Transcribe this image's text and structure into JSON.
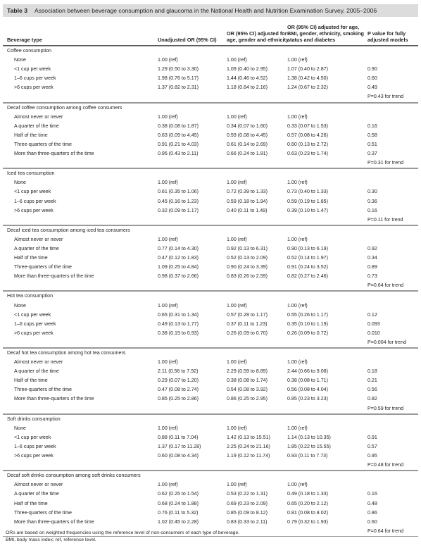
{
  "header": {
    "label": "Table 3",
    "title": "Association between beverage consumption and glaucoma in the National Health and Nutrition Examination Survey, 2005–2006"
  },
  "table": {
    "columns": [
      "Beverage type",
      "Unadjusted OR (95% CI)",
      "OR (95% CI) adjusted for age, gender and ethnicity",
      "OR (95% CI) adjusted for age, BMI, gender, ethnicity, smoking status and diabetes",
      "P value for fully adjusted models"
    ],
    "sections": [
      {
        "title": "Coffee consumption",
        "rows": [
          [
            "None",
            "1.00 (ref)",
            "1.00 (ref)",
            "1.00 (ref)"
          ],
          [
            "<1 cup per week",
            "1.29 (0.50 to 3.30)",
            "1.09 (0.40 to 2.95)",
            "1.07 (0.40 to 2.87)",
            "0.90"
          ],
          [
            "1–6 cups per week",
            "1.98 (0.76 to 5.17)",
            "1.44 (0.46 to 4.52)",
            "1.38 (0.42 to 4.50)",
            "0.60"
          ],
          [
            ">6 cups per week",
            "1.37 (0.82 to 2.31)",
            "1.18 (0.64 to 2.16)",
            "1.24 (0.67 to 2.32)",
            "0.49"
          ]
        ],
        "trend": "P=0.43 for trend"
      },
      {
        "title": "Decaf coffee consumption among coffee consumers",
        "rows": [
          [
            "Almost never or never",
            "1.00 (ref)",
            "1.00 (ref)",
            "1.00 (ref)"
          ],
          [
            "A quarter of the time",
            "0.38 (0.08 to 1.87)",
            "0.34 (0.07 to 1.60)",
            "0.33 (0.07 to 1.53)",
            "0.16"
          ],
          [
            "Half of the time",
            "0.63 (0.09 to 4.45)",
            "0.59 (0.08 to 4.45)",
            "0.57 (0.08 to 4.26)",
            "0.58"
          ],
          [
            "Three-quarters of the time",
            "0.91 (0.21 to 4.03)",
            "0.61 (0.14 to 2.69)",
            "0.60 (0.13 to 2.72)",
            "0.51"
          ],
          [
            "More than three-quarters of the time",
            "0.95 (0.43 to 2.11)",
            "0.66 (0.24 to 1.81)",
            "0.63 (0.23 to 1.74)",
            "0.37"
          ]
        ],
        "trend": "P=0.31 for trend"
      },
      {
        "title": "Iced tea consumption",
        "rows": [
          [
            "None",
            "1.00 (ref)",
            "1.00 (ref)",
            "1.00 (ref)"
          ],
          [
            "<1 cup per week",
            "0.61 (0.35 to 1.06)",
            "0.72 (0.39 to 1.33)",
            "0.73 (0.40 to 1.33)",
            "0.30"
          ],
          [
            "1–6 cups per week",
            "0.45 (0.16 to 1.23)",
            "0.59 (0.18 to 1.94)",
            "0.59 (0.19 to 1.85)",
            "0.36"
          ],
          [
            ">6 cups per week",
            "0.32 (0.09 to 1.17)",
            "0.40 (0.11 to 1.49)",
            "0.39 (0.10 to 1.47)",
            "0.16"
          ]
        ],
        "trend": "P=0.11 for trend"
      },
      {
        "title": "Decaf iced tea consumption among iced tea consumers",
        "rows": [
          [
            "Almost never or never",
            "1.00 (ref)",
            "1.00 (ref)",
            "1.00 (ref)"
          ],
          [
            "A quarter of the time",
            "0.77 (0.14 to 4.30)",
            "0.92 (0.13 to 6.31)",
            "0.90 (0.13 to 6.19)",
            "0.92"
          ],
          [
            "Half of the time",
            "0.47 (0.12 to 1.83)",
            "0.52 (0.13 to 2.09)",
            "0.52 (0.14 to 1.97)",
            "0.34"
          ],
          [
            "Three-quarters of the time",
            "1.09 (0.25 to 4.84)",
            "0.90 (0.24 to 3.39)",
            "0.91 (0.24 to 3.52)",
            "0.89"
          ],
          [
            "More than three-quarters of the time",
            "0.98 (0.37 to 2.66)",
            "0.83 (0.26 to 2.59)",
            "0.82 (0.27 to 2.46)",
            "0.73"
          ]
        ],
        "trend": "P=0.64 for trend"
      },
      {
        "title": "Hot tea consumption",
        "rows": [
          [
            "None",
            "1.00 (ref)",
            "1.00 (ref)",
            "1.00 (ref)"
          ],
          [
            "<1 cup per week",
            "0.65 (0.31 to 1.34)",
            "0.57 (0.28 to 1.17)",
            "0.55 (0.26 to 1.17)",
            "0.12"
          ],
          [
            "1–6 cups per week",
            "0.49 (0.13 to 1.77)",
            "0.37 (0.11 to 1.23)",
            "0.35 (0.10 to 1.19)",
            "0.093"
          ],
          [
            ">6 cups per week",
            "0.38 (0.15 to 0.93)",
            "0.26 (0.09 to 0.70)",
            "0.26 (0.09 to 0.72)",
            "0.010"
          ]
        ],
        "trend": "P=0.004 for trend"
      },
      {
        "title": "Decaf hot tea consumption among hot tea consumers",
        "rows": [
          [
            "Almost never or never",
            "1.00 (ref)",
            "1.00 (ref)",
            "1.00 (ref)"
          ],
          [
            "A quarter of the time",
            "2.11 (0.56 to 7.92)",
            "2.29 (0.59 to 8.89)",
            "2.44 (0.66 to 9.08)",
            "0.18"
          ],
          [
            "Half of the time",
            "0.29 (0.07 to 1.20)",
            "0.38 (0.08 to 1.74)",
            "0.38 (0.08 to 1.71)",
            "0.21"
          ],
          [
            "Three-quarters of the time",
            "0.47 (0.08 to 2.74)",
            "0.54 (0.08 to 3.92)",
            "0.56 (0.08 to 4.04)",
            "0.56"
          ],
          [
            "More than three-quarters of the time",
            "0.85 (0.25 to 2.86)",
            "0.86 (0.25 to 2.95)",
            "0.85 (0.23 to 3.23)",
            "0.82"
          ]
        ],
        "trend": "P=0.59 for trend"
      },
      {
        "title": "Soft drinks consumption",
        "rows": [
          [
            "None",
            "1.00 (ref)",
            "1.00 (ref)",
            "1.00 (ref)"
          ],
          [
            "<1 cup per week",
            "0.88 (0.11 to 7.04)",
            "1.42 (0.13 to 15.51)",
            "1.14 (0.13 to 10.35)",
            "0.91"
          ],
          [
            "1–6 cups per week",
            "1.37 (0.17 to 11.28)",
            "2.25 (0.24 to 21.16)",
            "1.85 (0.22 to 15.55)",
            "0.57"
          ],
          [
            ">6 cups per week",
            "0.60 (0.08 to 4.34)",
            "1.19 (0.12 to 11.74)",
            "0.93 (0.11 to 7.73)",
            "0.95"
          ]
        ],
        "trend": "P=0.48 for trend"
      },
      {
        "title": "Decaf soft drinks consumption among soft drinks consumers",
        "rows": [
          [
            "Almost never or never",
            "1.00 (ref)",
            "1.00 (ref)",
            "1.00 (ref)"
          ],
          [
            "A quarter of the time",
            "0.62 (0.25 to 1.54)",
            "0.53 (0.22 to 1.31)",
            "0.49 (0.18 to 1.33)",
            "0.16"
          ],
          [
            "Half of the time",
            "0.68 (0.24 to 1.88)",
            "0.69 (0.23 to 2.09)",
            "0.65 (0.20 to 2.12)",
            "0.48"
          ],
          [
            "Three-quarters of the time",
            "0.76 (0.11 to 5.32)",
            "0.85 (0.09 to 8.12)",
            "0.81 (0.08 to 8.02)",
            "0.86"
          ],
          [
            "More than three-quarters of the time",
            "1.02 (0.45 to 2.28)",
            "0.83 (0.33 to 2.11)",
            "0.79 (0.32 to 1.93)",
            "0.60"
          ]
        ],
        "trend": "P=0.64 for trend"
      }
    ]
  },
  "footnotes": [
    "ORs are based on weighted frequencies using the reference level of non-consumers of each type of beverage.",
    "BMI, body mass index; ref, reference level."
  ]
}
